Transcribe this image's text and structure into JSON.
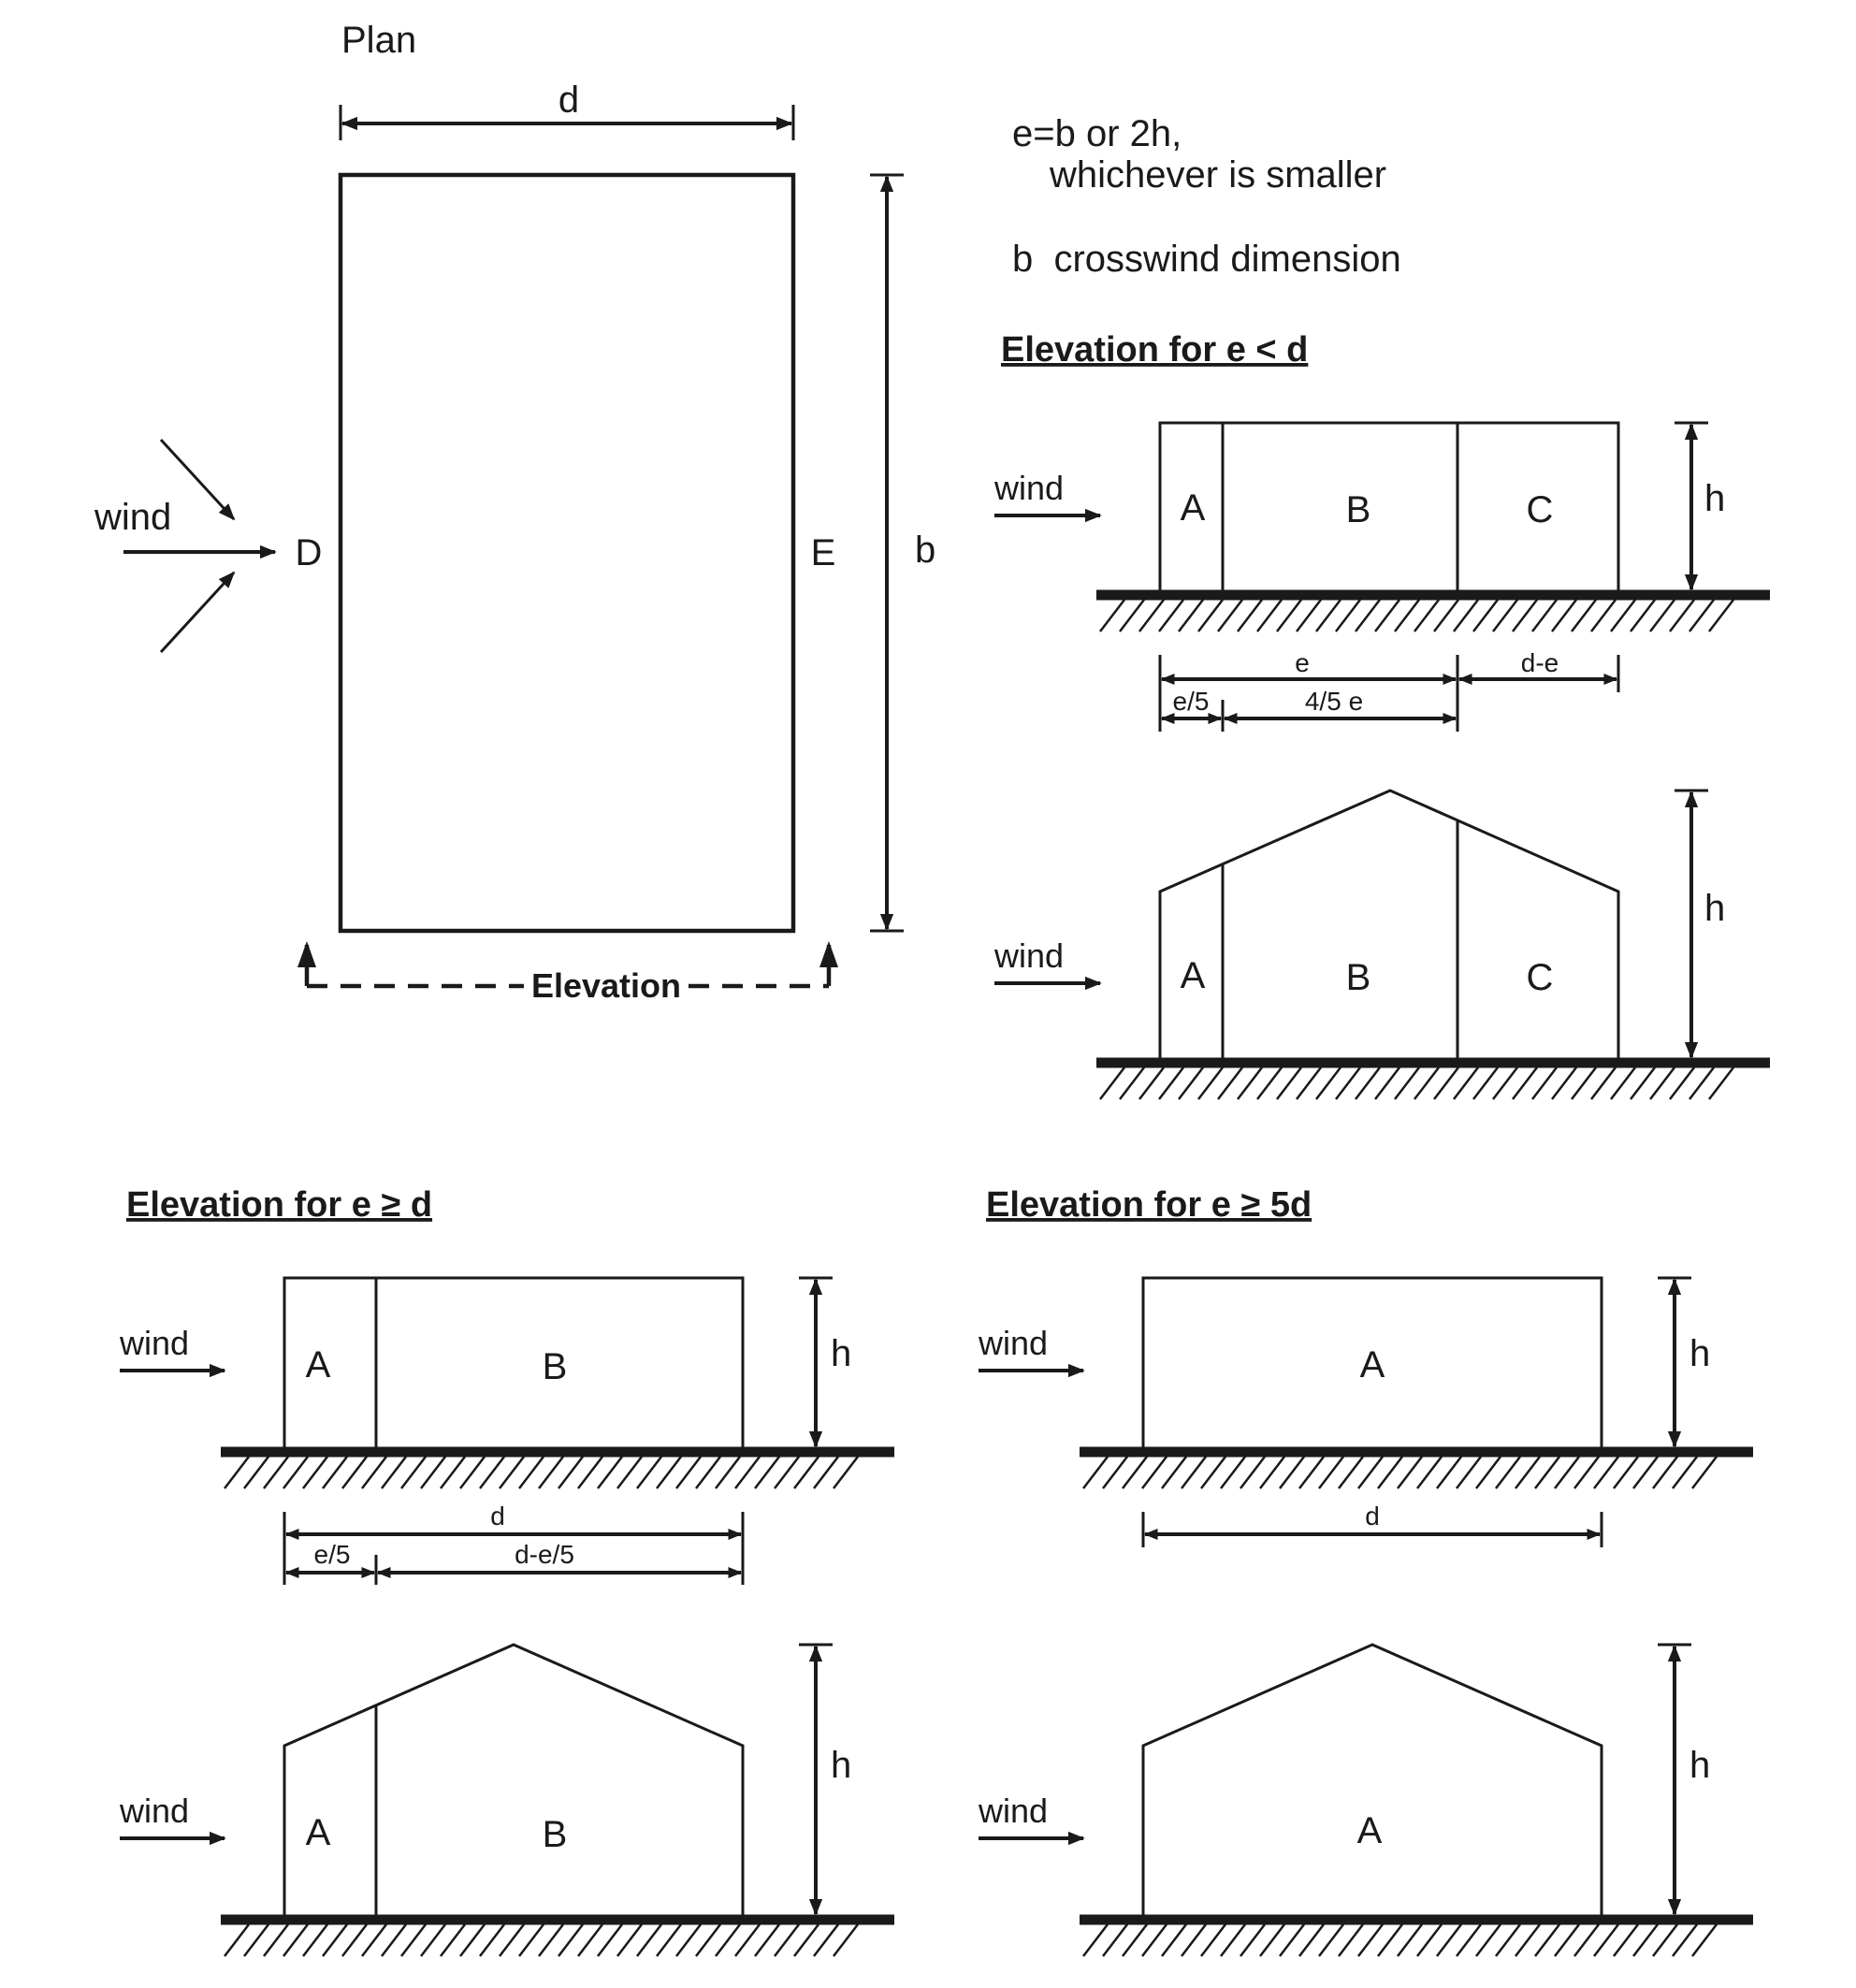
{
  "plan": {
    "title": "Plan",
    "dim_d": "d",
    "dim_b": "b",
    "face_windward": "D",
    "face_leeward": "E",
    "wind": "wind",
    "elevation": "Elevation"
  },
  "notes": {
    "e_def_line1": "e=b or 2h,",
    "e_def_line2": "whichever is smaller",
    "b_def": "b  crosswind dimension"
  },
  "panel_e_lt_d": {
    "heading": "Elevation for e < d",
    "wind": "wind",
    "zone_a": "A",
    "zone_b": "B",
    "zone_c": "C",
    "height": "h",
    "dim_e": "e",
    "dim_d_minus_e": "d-e",
    "dim_e5": "e/5",
    "dim_45e": "4/5 e",
    "roof_wind": "wind",
    "roof_zone_a": "A",
    "roof_zone_b": "B",
    "roof_zone_c": "C",
    "roof_height": "h"
  },
  "panel_e_ge_d": {
    "heading": "Elevation for e ≥ d",
    "wind": "wind",
    "zone_a": "A",
    "zone_b": "B",
    "height": "h",
    "dim_d": "d",
    "dim_e5": "e/5",
    "dim_d_minus_e5": "d-e/5",
    "roof_wind": "wind",
    "roof_zone_a": "A",
    "roof_zone_b": "B",
    "roof_height": "h"
  },
  "panel_e_ge_5d": {
    "heading": "Elevation for e ≥ 5d",
    "wind": "wind",
    "zone_a": "A",
    "height": "h",
    "dim_d": "d",
    "roof_wind": "wind",
    "roof_zone_a": "A",
    "roof_height": "h"
  }
}
